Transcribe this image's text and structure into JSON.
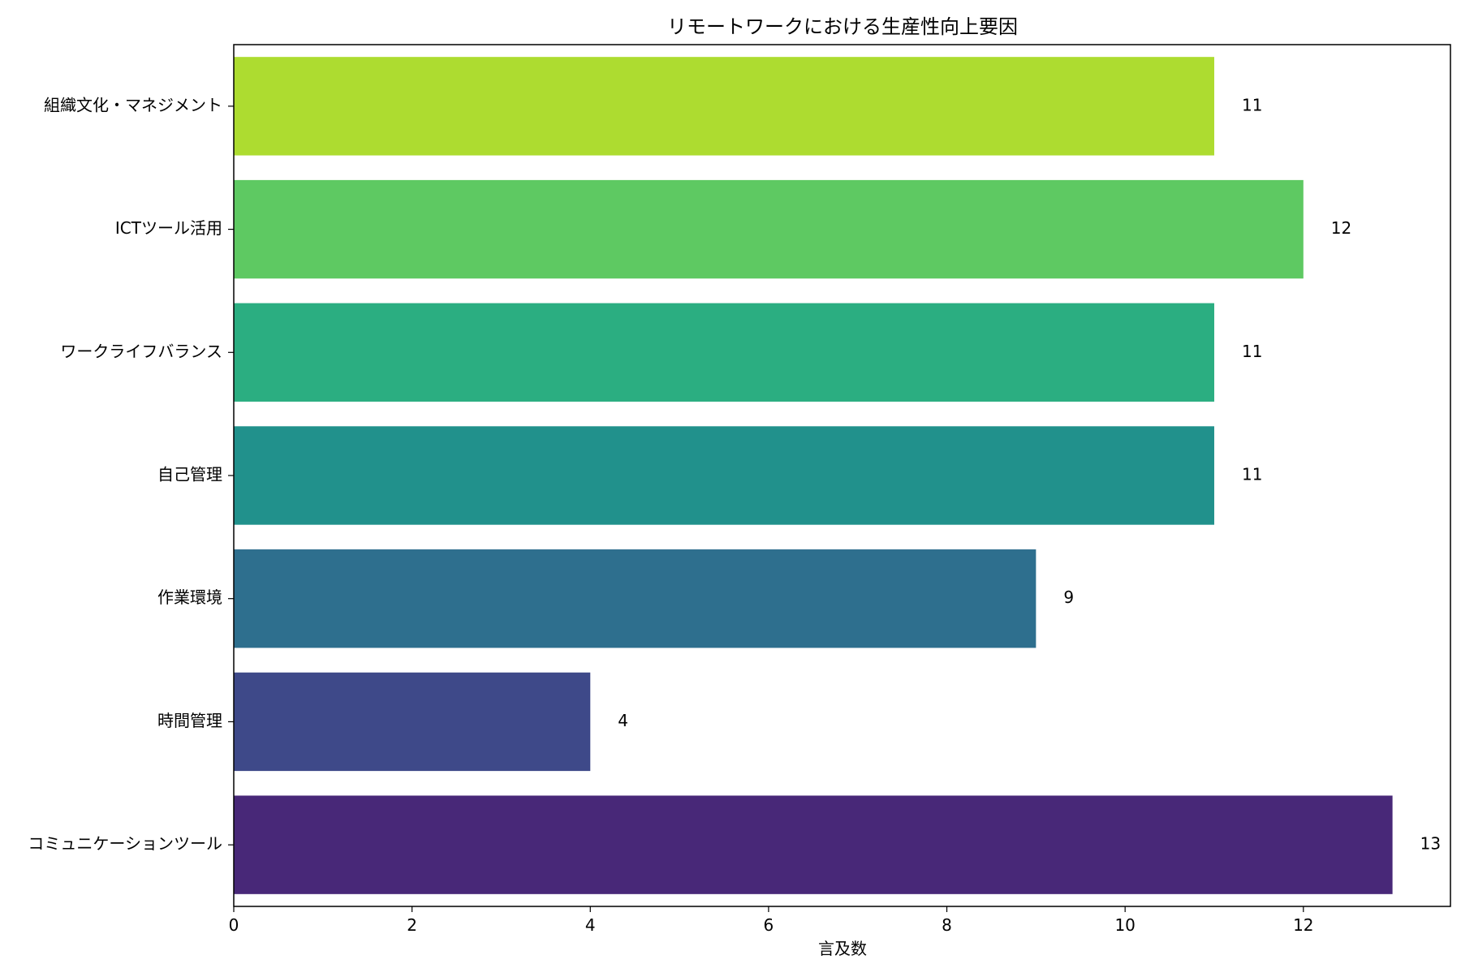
{
  "chart_data": {
    "type": "bar",
    "orientation": "horizontal",
    "title": "リモートワークにおける生産性向上要因",
    "xlabel": "言及数",
    "ylabel": "",
    "categories": [
      "コミュニケーションツール",
      "時間管理",
      "作業環境",
      "自己管理",
      "ワークライフバランス",
      "ICTツール活用",
      "組織文化・マネジメント"
    ],
    "values": [
      13,
      4,
      9,
      11,
      11,
      12,
      11
    ],
    "colors": [
      "#482878",
      "#3e4989",
      "#2e6f8e",
      "#21918c",
      "#2bae81",
      "#5ec962",
      "#addc30"
    ],
    "xlim": [
      0,
      13.65
    ],
    "xticks": [
      0,
      2,
      4,
      6,
      8,
      10,
      12
    ],
    "grid": false,
    "legend": false
  }
}
